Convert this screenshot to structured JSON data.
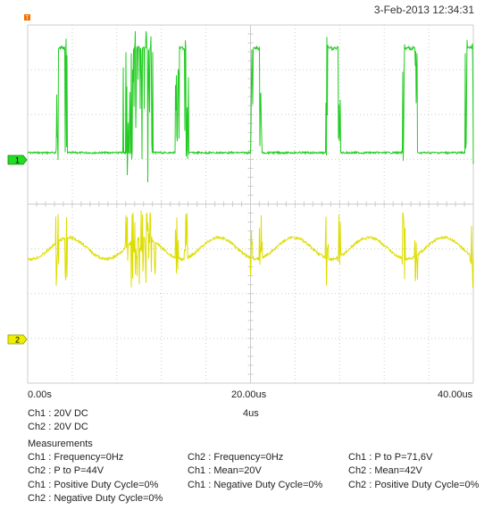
{
  "header": {
    "datetime": "3-Feb-2013 12:34:31"
  },
  "markers": {
    "ch1": "1",
    "ch2": "2"
  },
  "colors": {
    "ch1": "#22cc22",
    "ch2": "#dddd00",
    "grid": "#cccccc",
    "marker_ch1": "#22dd22",
    "marker_ch2": "#eeee00",
    "trigger": "#f07000"
  },
  "timebase": {
    "ticks": [
      "0.00s",
      "20.00us",
      "40.00us"
    ],
    "per_div": "4us"
  },
  "channels": {
    "ch1_setting": "Ch1 : 20V  DC",
    "ch2_setting": "Ch2 : 20V  DC"
  },
  "measurements": {
    "title": "Measurements",
    "col1": [
      "Ch1 : Frequency=0Hz",
      "Ch2 : P to P=44V",
      "Ch1 : Positive Duty Cycle=0%",
      "Ch2 : Negative Duty Cycle=0%"
    ],
    "col2": [
      "Ch2 : Frequency=0Hz",
      "Ch1 : Mean=20V",
      "Ch1 : Negative Duty Cycle=0%"
    ],
    "col3": [
      "Ch1 : P to P=71,6V",
      "Ch2 : Mean=42V",
      "Ch2 : Positive Duty Cycle=0%"
    ]
  }
}
